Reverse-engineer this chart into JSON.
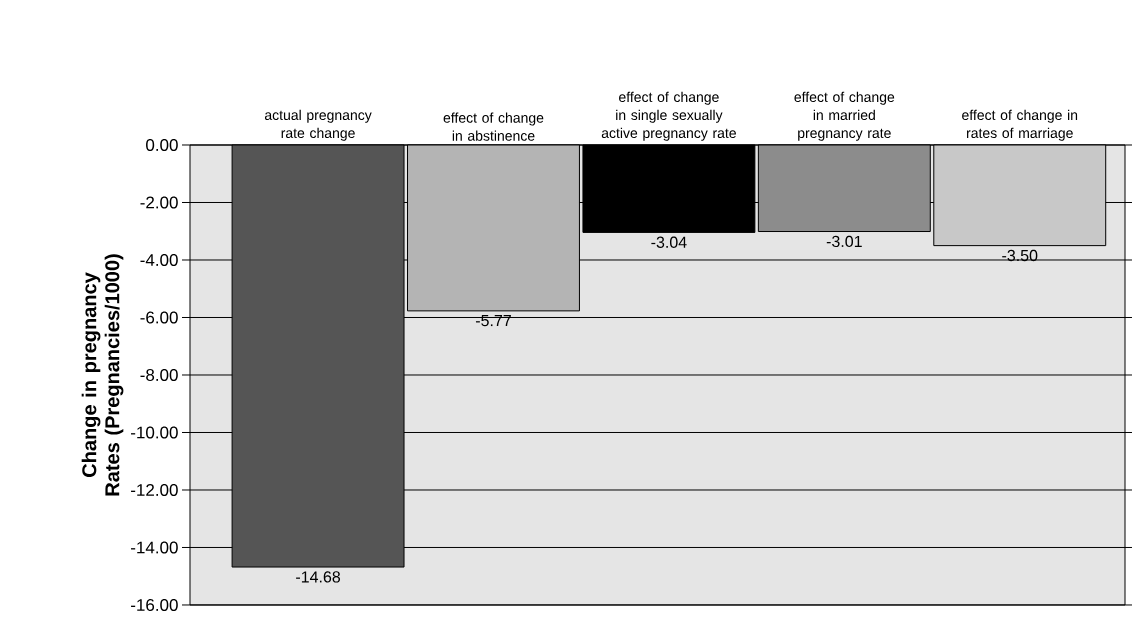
{
  "chart_data": {
    "type": "bar",
    "ylabel": "Change in pregnancy Rates (Pregnancies/1000)",
    "categories": [
      "actual pregnancy rate change",
      "effect of change in abstinence",
      "effect of change in single sexually active pregnancy rate",
      "effect of change in married pregnancy rate",
      "effect of change in rates of marriage"
    ],
    "values": [
      -14.68,
      -5.77,
      -3.04,
      -3.01,
      -3.5
    ],
    "colors": [
      "#555555",
      "#b4b4b4",
      "#000000",
      "#8c8c8c",
      "#c8c8c8"
    ],
    "value_labels": [
      "-14.68",
      "-5.77",
      "-3.04",
      "-3.01",
      "-3.50"
    ],
    "ylim": [
      -16,
      0
    ],
    "yticks": [
      {
        "value": 0,
        "label": "0.00"
      },
      {
        "value": -2,
        "label": "-2.00"
      },
      {
        "value": -4,
        "label": "-4.00"
      },
      {
        "value": -6,
        "label": "-6.00"
      },
      {
        "value": -8,
        "label": "-8.00"
      },
      {
        "value": -10,
        "label": "-10.00"
      },
      {
        "value": -12,
        "label": "-12.00"
      },
      {
        "value": -14,
        "label": "-14.00"
      },
      {
        "value": -16,
        "label": "-16.00"
      }
    ],
    "grid": "y"
  }
}
